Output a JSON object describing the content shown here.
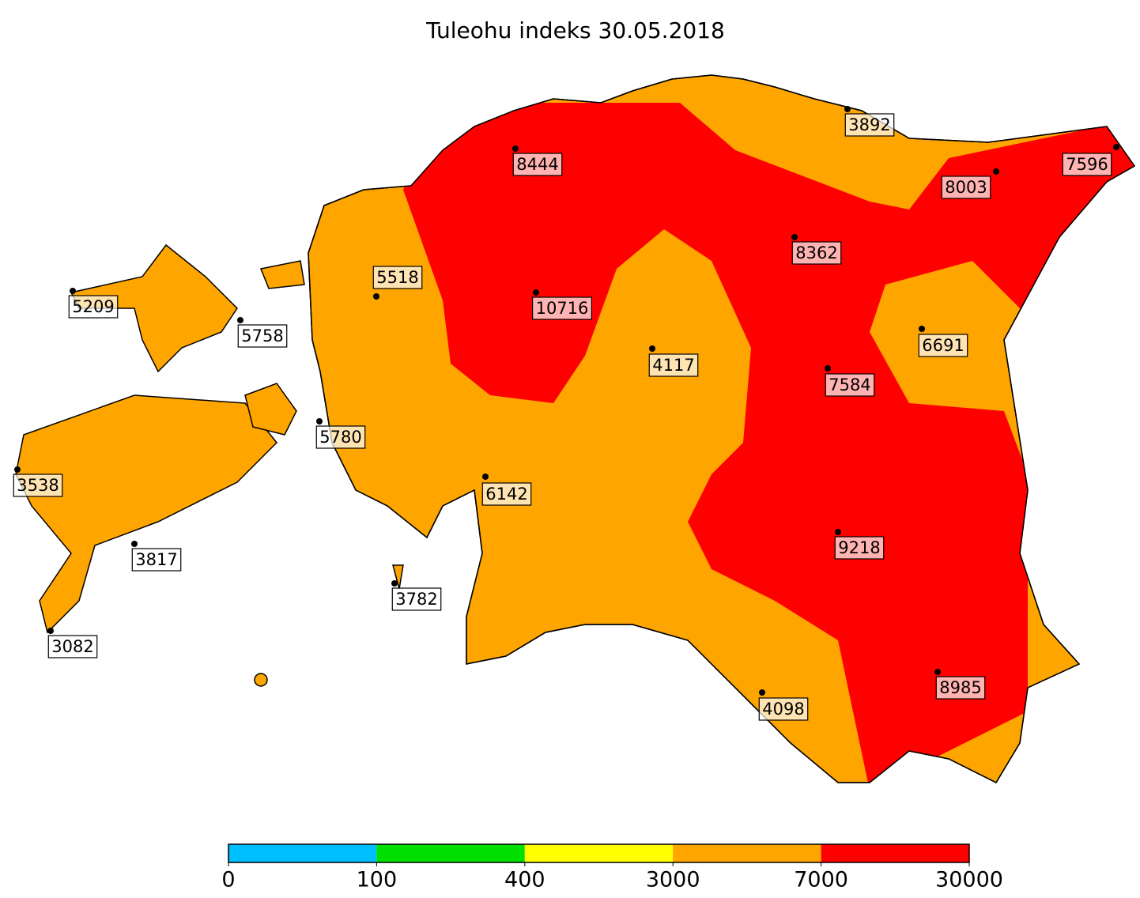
{
  "title": "Tuleohu indeks 30.05.2018",
  "stations": [
    8444,
    3892,
    7596,
    8003,
    5518,
    8362,
    5209,
    10716,
    5758,
    6691,
    4117,
    7584,
    5780,
    3538,
    6142,
    3817,
    9218,
    3782,
    3082,
    4098,
    8985
  ],
  "colorbar": {
    "ticks": [
      0,
      100,
      400,
      3000,
      7000,
      30000
    ],
    "colors": [
      "#00BFFF",
      "#00E000",
      "#FFFF00",
      "#FFA500",
      "#FF0000"
    ]
  }
}
